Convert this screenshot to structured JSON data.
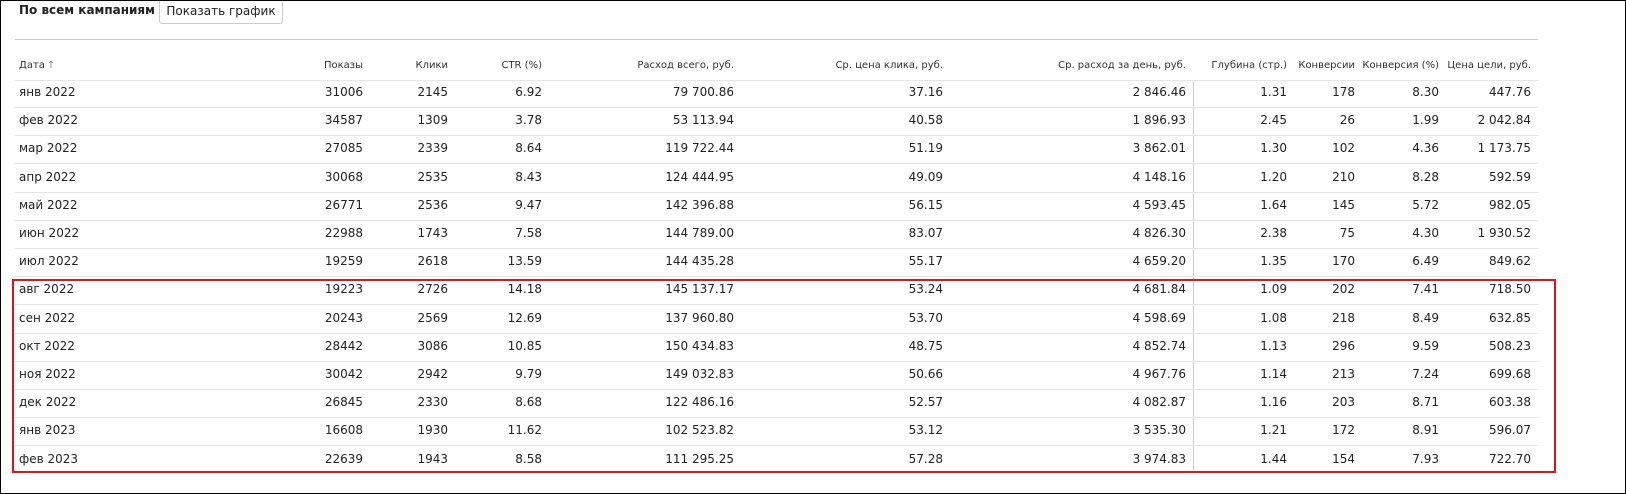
{
  "header": {
    "title": "По всем кампаниям",
    "button": "Показать график"
  },
  "table": {
    "columns": [
      "Дата",
      "Показы",
      "Клики",
      "CTR (%)",
      "Расход всего, руб.",
      "Ср. цена клика, руб.",
      "Ср. расход за день, руб.",
      "Глубина (стр.)",
      "Конверсии",
      "Конверсия (%)",
      "Цена цели, руб."
    ],
    "rows": [
      [
        "янв 2022",
        "31006",
        "2145",
        "6.92",
        "79 700.86",
        "37.16",
        "2 846.46",
        "1.31",
        "178",
        "8.30",
        "447.76"
      ],
      [
        "фев 2022",
        "34587",
        "1309",
        "3.78",
        "53 113.94",
        "40.58",
        "1 896.93",
        "2.45",
        "26",
        "1.99",
        "2 042.84"
      ],
      [
        "мар 2022",
        "27085",
        "2339",
        "8.64",
        "119 722.44",
        "51.19",
        "3 862.01",
        "1.30",
        "102",
        "4.36",
        "1 173.75"
      ],
      [
        "апр 2022",
        "30068",
        "2535",
        "8.43",
        "124 444.95",
        "49.09",
        "4 148.16",
        "1.20",
        "210",
        "8.28",
        "592.59"
      ],
      [
        "май 2022",
        "26771",
        "2536",
        "9.47",
        "142 396.88",
        "56.15",
        "4 593.45",
        "1.64",
        "145",
        "5.72",
        "982.05"
      ],
      [
        "июн 2022",
        "22988",
        "1743",
        "7.58",
        "144 789.00",
        "83.07",
        "4 826.30",
        "2.38",
        "75",
        "4.30",
        "1 930.52"
      ],
      [
        "июл 2022",
        "19259",
        "2618",
        "13.59",
        "144 435.28",
        "55.17",
        "4 659.20",
        "1.35",
        "170",
        "6.49",
        "849.62"
      ],
      [
        "авг 2022",
        "19223",
        "2726",
        "14.18",
        "145 137.17",
        "53.24",
        "4 681.84",
        "1.09",
        "202",
        "7.41",
        "718.50"
      ],
      [
        "сен 2022",
        "20243",
        "2569",
        "12.69",
        "137 960.80",
        "53.70",
        "4 598.69",
        "1.08",
        "218",
        "8.49",
        "632.85"
      ],
      [
        "окт 2022",
        "28442",
        "3086",
        "10.85",
        "150 434.83",
        "48.75",
        "4 852.74",
        "1.13",
        "296",
        "9.59",
        "508.23"
      ],
      [
        "ноя 2022",
        "30042",
        "2942",
        "9.79",
        "149 032.83",
        "50.66",
        "4 967.76",
        "1.14",
        "213",
        "7.24",
        "699.68"
      ],
      [
        "дек 2022",
        "26845",
        "2330",
        "8.68",
        "122 486.16",
        "52.57",
        "4 082.87",
        "1.16",
        "203",
        "8.71",
        "603.38"
      ],
      [
        "янв 2023",
        "16608",
        "1930",
        "11.62",
        "102 523.82",
        "53.12",
        "3 535.30",
        "1.21",
        "172",
        "8.91",
        "596.07"
      ],
      [
        "фев 2023",
        "22639",
        "1943",
        "8.58",
        "111 295.25",
        "57.28",
        "3 974.83",
        "1.44",
        "154",
        "7.93",
        "722.70"
      ]
    ]
  }
}
